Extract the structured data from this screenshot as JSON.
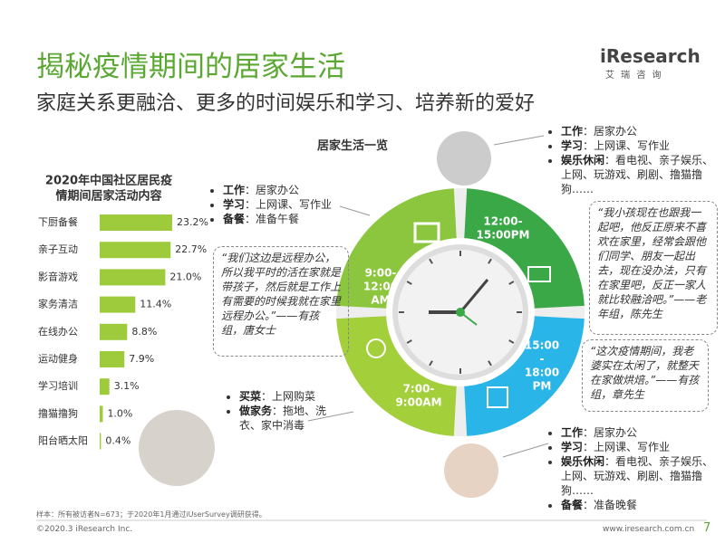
{
  "header": {
    "title": "揭秘疫情期间的居家生活",
    "subtitle": "家庭关系更融洽、更多的时间娱乐和学习、培养新的爱好",
    "logo": "iResearch",
    "logo_cn": "艾 瑞 咨 询"
  },
  "chart_data": {
    "type": "bar",
    "orientation": "horizontal",
    "title": [
      "2020年中国社区居民疫",
      "情期间居家活动内容"
    ],
    "categories": [
      "下厨备餐",
      "亲子互动",
      "影音游戏",
      "家务清洁",
      "在线办公",
      "运动健身",
      "学习培训",
      "撸猫撸狗",
      "阳台晒太阳"
    ],
    "values": [
      23.2,
      22.7,
      21.0,
      11.4,
      8.8,
      7.9,
      3.1,
      1.0,
      0.4
    ],
    "value_labels": [
      "23.2%",
      "22.7%",
      "21.0%",
      "11.4%",
      "8.8%",
      "7.9%",
      "3.1%",
      "1.0%",
      "0.4%"
    ],
    "color": "#9dcb3b"
  },
  "overview": {
    "title": "居家生活一览",
    "periods": [
      {
        "label": [
          "9:00-",
          "12:00",
          "AM"
        ],
        "color": "#8cc63f"
      },
      {
        "label": [
          "12:00-",
          "15:00PM"
        ],
        "color": "#3aa846"
      },
      {
        "label": [
          "15:00",
          "-",
          "18:00",
          "PM"
        ],
        "color": "#29b5e8"
      },
      {
        "label": [
          "7:00-",
          "9:00AM"
        ],
        "color": "#a3cf3b"
      }
    ],
    "blocks": [
      {
        "items": [
          {
            "label": "工作",
            "text": "：居家办公"
          },
          {
            "label": "学习",
            "text": "：上网课、写作业"
          },
          {
            "label": "备餐",
            "text": "：准备午餐"
          }
        ]
      },
      {
        "items": [
          {
            "label": "工作",
            "text": "：居家办公"
          },
          {
            "label": "学习",
            "text": "：上网课、写作业"
          },
          {
            "label": "娱乐休闲",
            "text": "：看电视、亲子娱乐、上网、玩游戏、刷剧、撸猫撸狗……"
          }
        ]
      },
      {
        "items": [
          {
            "label": "买菜",
            "text": "：上网购菜"
          },
          {
            "label": "做家务",
            "text": "：拖地、洗衣、家中消毒"
          }
        ]
      },
      {
        "items": [
          {
            "label": "工作",
            "text": "：居家办公"
          },
          {
            "label": "学习",
            "text": "：上网课、写作业"
          },
          {
            "label": "娱乐休闲",
            "text": "：看电视、亲子娱乐、上网、玩游戏、刷剧、撸猫撸狗……"
          },
          {
            "label": "备餐",
            "text": "：准备晚餐"
          }
        ]
      }
    ],
    "quotes": [
      "“我们这边是远程办公，所以我平时的活在家就是带孩子，然后就是工作上有需要的时候我就在家里远程办公。”——有孩组，唐女士",
      "“我小孩现在也跟我一起吧，他反正原来不喜欢在家里，经常会跟他们同学、朋友一起出去，现在没办法，只有在家里吧，反正一家人就比较融洽吧。”——老年组，陈先生",
      "“这次疫情期间，我老婆实在太闲了，就整天在家做烘焙。”——有孩组，章先生"
    ]
  },
  "footer": {
    "note": "样本：所有被访者N=673；于2020年1月通过iUserSurvey调研获得。",
    "copyright": "©2020.3 iResearch Inc.",
    "url": "www.iresearch.com.cn",
    "page": "7"
  }
}
